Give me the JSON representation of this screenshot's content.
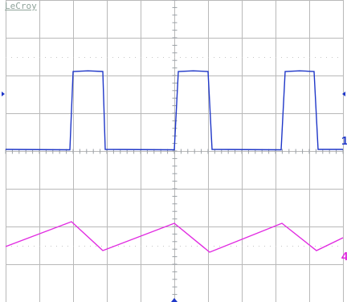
{
  "scope": {
    "brand": "LeCroy"
  },
  "channels": [
    {
      "id": "ch1",
      "label": "1",
      "color": "#1f37c8",
      "waveform": "square"
    },
    {
      "id": "ch4",
      "label": "4",
      "color": "#e12be1",
      "waveform": "triangle"
    }
  ],
  "grid": {
    "divisions_x": 10,
    "divisions_y": 8,
    "grid_color": "#b9b9b9",
    "center_tick_color": "#9aa0a6"
  },
  "markers": {
    "color": "#1f37c8"
  }
}
